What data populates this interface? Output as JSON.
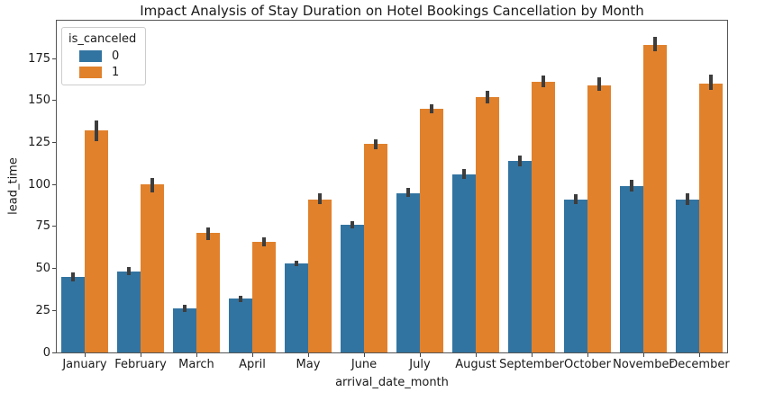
{
  "chart_data": {
    "type": "bar",
    "title": "Impact Analysis of Stay Duration on Hotel Bookings Cancellation by Month",
    "xlabel": "arrival_date_month",
    "ylabel": "lead_time",
    "categories": [
      "January",
      "February",
      "March",
      "April",
      "May",
      "June",
      "July",
      "August",
      "September",
      "October",
      "November",
      "December"
    ],
    "legend": {
      "title": "is_canceled",
      "position": "upper left"
    },
    "series": [
      {
        "name": "0",
        "color": "#3274a1",
        "values": [
          45,
          48,
          26,
          32,
          53,
          76,
          95,
          106,
          114,
          91,
          99,
          91
        ],
        "ci_low": [
          42.5,
          46,
          24,
          30,
          51.5,
          74,
          92.5,
          103.5,
          111,
          88.5,
          96,
          88
        ],
        "ci_high": [
          47.5,
          51,
          28.5,
          34,
          54.5,
          78,
          98,
          109,
          117,
          94,
          103,
          95
        ]
      },
      {
        "name": "1",
        "color": "#e1812c",
        "values": [
          132,
          100,
          71,
          66,
          91,
          124,
          145,
          152,
          161,
          159,
          183,
          160
        ],
        "ci_low": [
          126,
          95.5,
          67,
          63,
          88,
          121,
          142.5,
          148.5,
          158,
          155.5,
          179,
          156.5
        ],
        "ci_high": [
          138,
          104,
          74.5,
          68.5,
          94.5,
          127,
          148,
          156,
          165,
          164,
          188,
          165.5
        ]
      }
    ],
    "yticks": [
      0,
      25,
      50,
      75,
      100,
      125,
      150,
      175
    ],
    "ylim": [
      0,
      197.5
    ],
    "grid": false,
    "error_bar_color": "#3d3d3d",
    "background": "#ffffff"
  }
}
